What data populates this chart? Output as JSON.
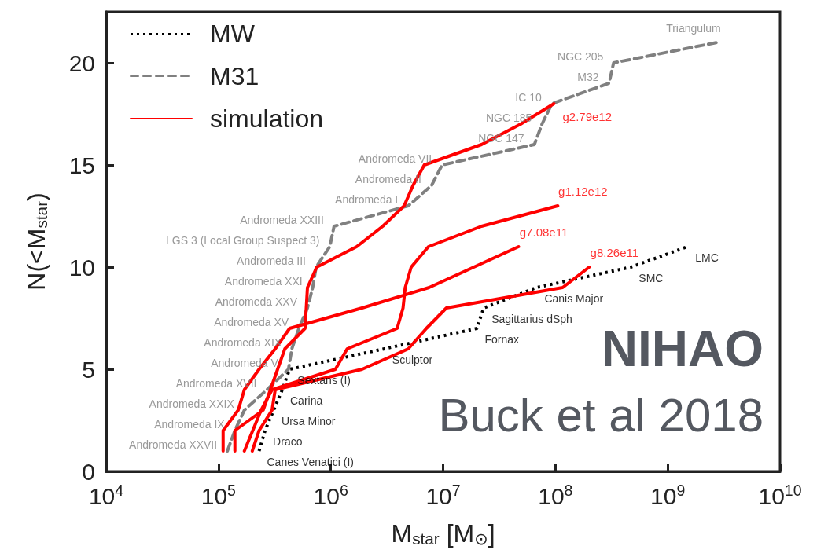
{
  "chart_data": {
    "type": "line",
    "xlabel": "M$_{star}$ [M$_{⊙}$]",
    "ylabel": "N(<M$_{star}$)",
    "log": "x",
    "xlim": [
      10000,
      10000000000
    ],
    "ylim": [
      0,
      22.5
    ],
    "xticks": [
      {
        "value": 10000,
        "label": "10$^{4}$"
      },
      {
        "value": 100000,
        "label": "10$^{5}$"
      },
      {
        "value": 1000000,
        "label": "10$^{6}$"
      },
      {
        "value": 10000000,
        "label": "10$^{7}$"
      },
      {
        "value": 100000000,
        "label": "10$^{8}$"
      },
      {
        "value": 1000000000,
        "label": "10$^{9}$"
      },
      {
        "value": 10000000000,
        "label": "10$^{10}$"
      }
    ],
    "yticks": [
      0,
      5,
      10,
      15,
      20
    ],
    "grid": false,
    "legend": "top left",
    "marker": "none",
    "series": [
      {
        "name": "MW",
        "color": "#000000",
        "line_style": "dotted",
        "x": [
          230000,
          260000,
          310000,
          370000,
          430000,
          3000000,
          20000000,
          23000000,
          68000000,
          470000000,
          1500000000
        ],
        "values": [
          1,
          2,
          3,
          4,
          5,
          6,
          7,
          8,
          9,
          10,
          11
        ]
      },
      {
        "name": "M31",
        "color": "#808080",
        "line_style": "dashed",
        "x": [
          120000,
          140000,
          170000,
          270000,
          420000,
          450000,
          520000,
          620000,
          690000,
          740000,
          980000,
          1070000,
          4900000,
          7900000,
          9800000,
          65000000,
          76000000,
          93000000,
          300000000,
          330000000,
          2750000000
        ],
        "values": [
          1,
          2,
          3,
          4,
          5,
          6,
          7,
          8,
          9,
          10,
          11,
          12,
          13,
          14,
          15,
          16,
          17,
          18,
          19,
          20,
          21
        ]
      },
      {
        "name": "simulation",
        "color": "#ff0000",
        "line_style": "solid",
        "x": [
          140000,
          140000,
          250000,
          290000,
          390000,
          590000,
          620000,
          750000,
          1700000,
          2900000,
          4500000,
          5400000,
          6800000,
          22000000,
          49000000,
          97000000
        ],
        "values": [
          1,
          2,
          3,
          4,
          6,
          7,
          9,
          10,
          11,
          12,
          13,
          14,
          15,
          16,
          17,
          18
        ]
      },
      {
        "color": "#ff0000",
        "line_style": "solid",
        "x": [
          170000,
          240000,
          300000,
          1100000,
          1400000,
          3900000,
          4400000,
          4600000,
          5200000,
          7400000,
          22000000,
          105000000
        ],
        "values": [
          1,
          3,
          4,
          5,
          6,
          7,
          8,
          9,
          10,
          11,
          12,
          13
        ]
      },
      {
        "color": "#ff0000",
        "line_style": "solid",
        "x": [
          110000,
          110000,
          150000,
          170000,
          230000,
          320000,
          430000,
          1900000,
          7500000,
          47000000
        ],
        "values": [
          1,
          2,
          3,
          4,
          5,
          6,
          7,
          8,
          9,
          11
        ]
      },
      {
        "color": "#ff0000",
        "line_style": "solid",
        "x": [
          200000,
          230000,
          300000,
          320000,
          1900000,
          4900000,
          7100000,
          10700000,
          116000000,
          200000000
        ],
        "values": [
          1,
          2,
          3,
          4,
          5,
          6,
          7,
          8,
          9,
          10
        ]
      }
    ],
    "annotations": [
      {
        "text": "Canes Venatici (I)",
        "x": 230000,
        "y": 1
      },
      {
        "text": "Draco",
        "x": 260000,
        "y": 2
      },
      {
        "text": "Ursa Minor",
        "x": 310000,
        "y": 3
      },
      {
        "text": "Carina",
        "x": 370000,
        "y": 4
      },
      {
        "text": "Sextans (I)",
        "x": 430000,
        "y": 5
      },
      {
        "text": "Sculptor",
        "x": 3000000,
        "y": 6
      },
      {
        "text": "Fornax",
        "x": 20000000,
        "y": 7
      },
      {
        "text": "Sagittarius dSph",
        "x": 23000000,
        "y": 8
      },
      {
        "text": "Canis Major",
        "x": 68000000,
        "y": 9
      },
      {
        "text": "SMC",
        "x": 470000000,
        "y": 10
      },
      {
        "text": "LMC",
        "x": 1500000000,
        "y": 11
      },
      {
        "text": "Andromeda XXVII",
        "x": 120000,
        "y": 1
      },
      {
        "text": "Andromeda IX",
        "x": 140000,
        "y": 2
      },
      {
        "text": "Andromeda XXIX",
        "x": 170000,
        "y": 3
      },
      {
        "text": "Andromeda XVII",
        "x": 270000,
        "y": 4
      },
      {
        "text": "Andromeda V",
        "x": 420000,
        "y": 5
      },
      {
        "text": "Andromeda XIX",
        "x": 450000,
        "y": 6
      },
      {
        "text": "Andromeda XV",
        "x": 520000,
        "y": 7
      },
      {
        "text": "Andromeda XXV",
        "x": 620000,
        "y": 8
      },
      {
        "text": "Andromeda XXI",
        "x": 690000,
        "y": 9
      },
      {
        "text": "Andromeda III",
        "x": 740000,
        "y": 10
      },
      {
        "text": "LGS 3 (Local Group Suspect 3)",
        "x": 980000,
        "y": 11
      },
      {
        "text": "Andromeda XXIII",
        "x": 1070000,
        "y": 12
      },
      {
        "text": "Andromeda I",
        "x": 4900000,
        "y": 13
      },
      {
        "text": "Andromeda II",
        "x": 7900000,
        "y": 14
      },
      {
        "text": "Andromeda VII",
        "x": 9800000,
        "y": 15
      },
      {
        "text": "NGC 147",
        "x": 65000000,
        "y": 16
      },
      {
        "text": "NGC 185",
        "x": 76000000,
        "y": 17
      },
      {
        "text": "IC 10",
        "x": 93000000,
        "y": 18
      },
      {
        "text": "M32",
        "x": 300000000,
        "y": 19
      },
      {
        "text": "NGC 205",
        "x": 330000000,
        "y": 20
      },
      {
        "text": "Triangulum",
        "x": 2750000000,
        "y": 21
      },
      {
        "text": "g2.79e12",
        "x": 97000000,
        "y": 18
      },
      {
        "text": "g1.12e12",
        "x": 105000000,
        "y": 13
      },
      {
        "text": "g7.08e11",
        "x": 47000000,
        "y": 11
      },
      {
        "text": "g8.26e11",
        "x": 200000000,
        "y": 10
      },
      "NIHAO",
      "Buck et al 2018"
    ]
  }
}
